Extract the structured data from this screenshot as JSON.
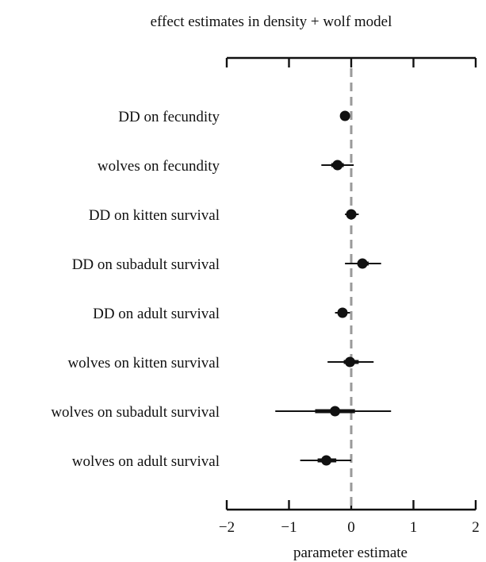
{
  "chart_data": {
    "type": "scatter",
    "title": "effect estimates in density + wolf model",
    "xlabel": "parameter estimate",
    "xlim": [
      -2,
      2
    ],
    "xticks": [
      -2,
      -1,
      0,
      1,
      2
    ],
    "tick_labels": [
      "−2",
      "−1",
      "0",
      "1",
      "2"
    ],
    "reference_line": 0,
    "items": [
      {
        "label": "DD on fecundity",
        "estimate": -0.1,
        "inner": [
          -0.12,
          -0.06
        ],
        "outer": [
          -0.13,
          -0.04
        ]
      },
      {
        "label": "wolves on fecundity",
        "estimate": -0.22,
        "inner": [
          -0.32,
          -0.12
        ],
        "outer": [
          -0.48,
          0.04
        ]
      },
      {
        "label": "DD on kitten survival",
        "estimate": 0.0,
        "inner": [
          -0.04,
          0.08
        ],
        "outer": [
          -0.1,
          0.12
        ]
      },
      {
        "label": "DD on subadult survival",
        "estimate": 0.18,
        "inner": [
          0.1,
          0.28
        ],
        "outer": [
          -0.1,
          0.48
        ]
      },
      {
        "label": "DD on adult survival",
        "estimate": -0.14,
        "inner": [
          -0.2,
          -0.08
        ],
        "outer": [
          -0.26,
          -0.02
        ]
      },
      {
        "label": "wolves on kitten survival",
        "estimate": -0.02,
        "inner": [
          -0.12,
          0.12
        ],
        "outer": [
          -0.38,
          0.36
        ]
      },
      {
        "label": "wolves on subadult survival",
        "estimate": -0.26,
        "inner": [
          -0.58,
          0.06
        ],
        "outer": [
          -1.22,
          0.64
        ]
      },
      {
        "label": "wolves on adult survival",
        "estimate": -0.4,
        "inner": [
          -0.54,
          -0.24
        ],
        "outer": [
          -0.82,
          0.0
        ]
      }
    ],
    "colors": {
      "marks": "#111111",
      "reference": "#9a9a9a"
    }
  }
}
